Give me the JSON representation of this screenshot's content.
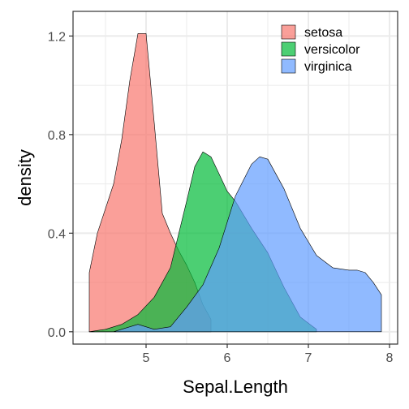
{
  "chart_data": {
    "type": "area",
    "xlabel": "Sepal.Length",
    "ylabel": "density",
    "xlim": [
      4.1,
      8.1
    ],
    "ylim": [
      -0.05,
      1.3
    ],
    "x_ticks": [
      5,
      6,
      7,
      8
    ],
    "y_ticks": [
      0.0,
      0.4,
      0.8,
      1.2
    ],
    "x_tick_labels": [
      "5",
      "6",
      "7",
      "8"
    ],
    "y_tick_labels": [
      "0.0",
      "0.4",
      "0.8",
      "1.2"
    ],
    "grid": true,
    "legend_position": "top-right",
    "series": [
      {
        "name": "setosa",
        "color": "#F8766D",
        "x": [
          4.3,
          4.4,
          4.5,
          4.6,
          4.7,
          4.8,
          4.9,
          5.0,
          5.1,
          5.2,
          5.3,
          5.4,
          5.5,
          5.6,
          5.7,
          5.8
        ],
        "values": [
          0.24,
          0.4,
          0.5,
          0.6,
          0.78,
          1.02,
          1.21,
          1.21,
          0.85,
          0.48,
          0.4,
          0.33,
          0.27,
          0.2,
          0.11,
          0.05
        ]
      },
      {
        "name": "versicolor",
        "color": "#00BA38",
        "x": [
          4.3,
          4.5,
          4.7,
          4.9,
          5.1,
          5.3,
          5.5,
          5.6,
          5.7,
          5.8,
          5.9,
          6.0,
          6.1,
          6.3,
          6.5,
          6.7,
          6.9,
          7.1
        ],
        "values": [
          0.0,
          0.01,
          0.03,
          0.07,
          0.14,
          0.26,
          0.53,
          0.67,
          0.73,
          0.71,
          0.64,
          0.57,
          0.53,
          0.42,
          0.32,
          0.18,
          0.06,
          0.01
        ]
      },
      {
        "name": "virginica",
        "color": "#619CFF",
        "x": [
          4.3,
          4.6,
          4.8,
          4.9,
          5.1,
          5.3,
          5.5,
          5.7,
          5.9,
          6.1,
          6.3,
          6.4,
          6.5,
          6.7,
          6.9,
          7.1,
          7.3,
          7.5,
          7.6,
          7.7,
          7.8,
          7.9
        ],
        "values": [
          0.0,
          0.0,
          0.02,
          0.03,
          0.01,
          0.02,
          0.1,
          0.19,
          0.34,
          0.55,
          0.68,
          0.71,
          0.7,
          0.58,
          0.42,
          0.31,
          0.26,
          0.25,
          0.25,
          0.24,
          0.2,
          0.15
        ]
      }
    ]
  }
}
